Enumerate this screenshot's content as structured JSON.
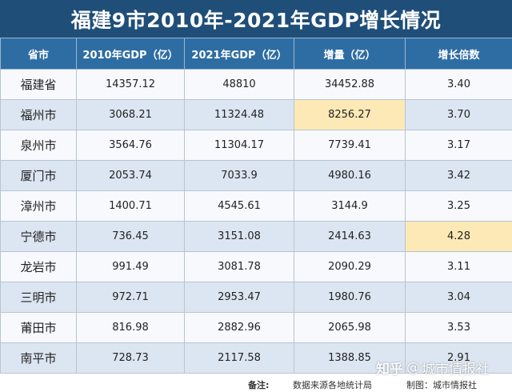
{
  "title": "福建9市2010年-2021年GDP增长情况",
  "columns": [
    "省市",
    "2010年GDP（亿）",
    "2021年GDP（亿）",
    "增量（亿）",
    "增长倍数"
  ],
  "rows": [
    {
      "name": "福建省",
      "gdp2010": "14357.12",
      "gdp2021": "48810",
      "increase": "34452.88",
      "multiple": "3.40"
    },
    {
      "name": "福州市",
      "gdp2010": "3068.21",
      "gdp2021": "11324.48",
      "increase": "8256.27",
      "multiple": "3.70"
    },
    {
      "name": "泉州市",
      "gdp2010": "3564.76",
      "gdp2021": "11304.17",
      "increase": "7739.41",
      "multiple": "3.17"
    },
    {
      "name": "厦门市",
      "gdp2010": "2053.74",
      "gdp2021": "7033.9",
      "increase": "4980.16",
      "multiple": "3.42"
    },
    {
      "name": "漳州市",
      "gdp2010": "1400.71",
      "gdp2021": "4545.61",
      "increase": "3144.9",
      "multiple": "3.25"
    },
    {
      "name": "宁德市",
      "gdp2010": "736.45",
      "gdp2021": "3151.08",
      "increase": "2414.63",
      "multiple": "4.28"
    },
    {
      "name": "龙岩市",
      "gdp2010": "991.49",
      "gdp2021": "3081.78",
      "increase": "2090.29",
      "multiple": "3.11"
    },
    {
      "name": "三明市",
      "gdp2010": "972.71",
      "gdp2021": "2953.47",
      "increase": "1980.76",
      "multiple": "3.04"
    },
    {
      "name": "莆田市",
      "gdp2010": "816.98",
      "gdp2021": "2882.96",
      "increase": "2065.98",
      "multiple": "3.53"
    },
    {
      "name": "南平市",
      "gdp2010": "728.73",
      "gdp2021": "2117.58",
      "increase": "1388.85",
      "multiple": "2.91"
    }
  ],
  "footer": {
    "note_label": "备注:",
    "source": "数据来源各地统计局",
    "maker": "制图：城市情报社"
  },
  "watermark": {
    "logo": "知乎",
    "at": "@",
    "account": "城市情报社"
  },
  "colors": {
    "title_bg": "#1f4e79",
    "header_bg": "#2e6da4",
    "row_odd": "#f7f9fc",
    "row_even": "#dce6f2",
    "highlight": "#fde9b6"
  }
}
